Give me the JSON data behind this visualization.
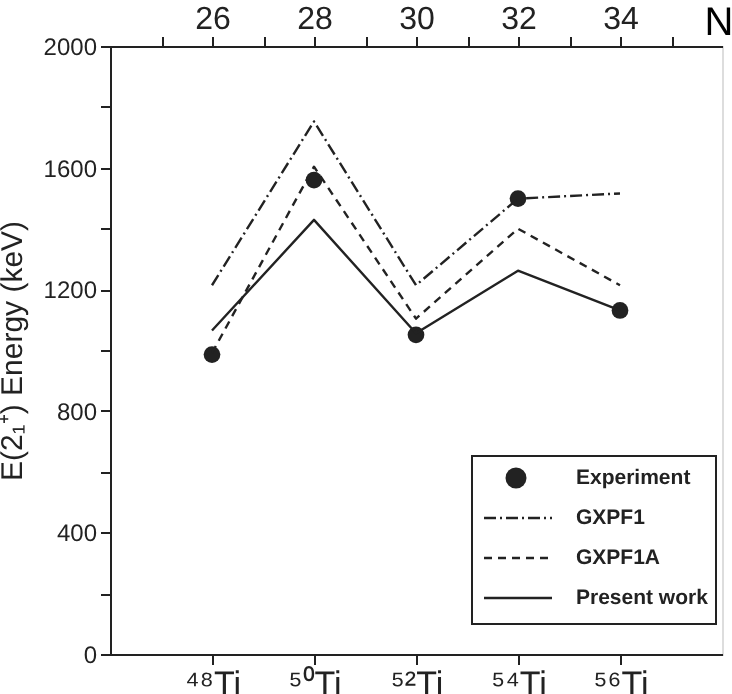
{
  "chart_data": {
    "type": "line",
    "ylabel": "E(2₁⁺) Energy  (keV)",
    "x2label": "N",
    "categories": [
      "⁴⁸Ti",
      "⁵⁰Ti",
      "⁵²Ti",
      "⁵⁴Ti",
      "⁵⁶Ti"
    ],
    "ylim": [
      0,
      2000
    ],
    "x2lim": [
      24,
      36
    ],
    "x2ticks": [
      {
        "value": 25,
        "label": null
      },
      26,
      {
        "value": 27,
        "label": null
      },
      28,
      {
        "value": 29,
        "label": null
      },
      30,
      {
        "value": 31,
        "label": null
      },
      32,
      {
        "value": 33,
        "label": null
      },
      34,
      {
        "value": 35,
        "label": null
      }
    ],
    "yticks": [
      0,
      {
        "value": 200,
        "label": null
      },
      400,
      {
        "value": 600,
        "label": null
      },
      800,
      {
        "value": 1000,
        "label": null
      },
      1200,
      {
        "value": 1400,
        "label": null
      },
      1600,
      {
        "value": 1800,
        "label": null
      },
      2000
    ],
    "grid": false,
    "legend": "bottom right",
    "series": [
      {
        "name": "Experiment",
        "type": "scatter",
        "marker": "circle",
        "color": "#222222",
        "values": [
          985,
          1559,
          1050,
          1498,
          1130
        ]
      },
      {
        "name": "GXPF1",
        "line_style": "dashdot",
        "color": "#222222",
        "values": [
          1213,
          1752,
          1213,
          1498,
          1515
        ]
      },
      {
        "name": "GXPF1A",
        "line_style": "dashed",
        "color": "#222222",
        "values": [
          990,
          1603,
          1103,
          1399,
          1213
        ]
      },
      {
        "name": "Present work",
        "line_style": "solid",
        "color": "#222222",
        "values": [
          1064,
          1428,
          1055,
          1261,
          1130
        ]
      }
    ]
  }
}
